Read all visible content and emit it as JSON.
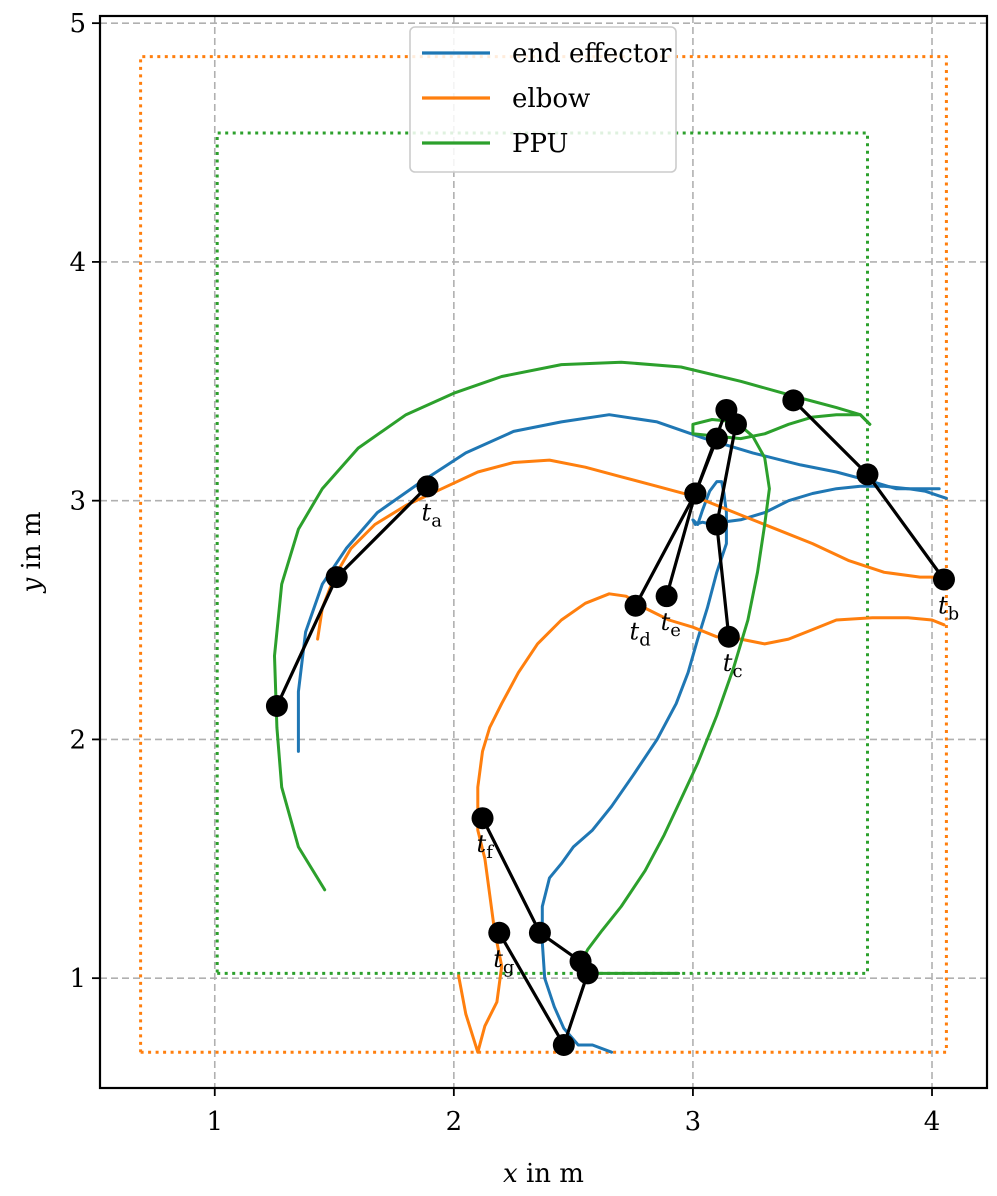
{
  "chart_data": {
    "type": "line",
    "xlabel": "x in m",
    "ylabel": "y in m",
    "xlim": [
      0.52,
      4.23
    ],
    "ylim": [
      0.54,
      5.03
    ],
    "xticks": [
      1,
      2,
      3,
      4
    ],
    "yticks": [
      1,
      2,
      3,
      4,
      5
    ],
    "grid": true,
    "legend_position": "top-center",
    "colors": {
      "end_effector": "#1f77b4",
      "elbow": "#ff7f0e",
      "ppu": "#2ca02c",
      "arm": "#000000"
    },
    "series": [
      {
        "name": "end effector",
        "color": "#1f77b4",
        "style": "solid",
        "x": [
          1.35,
          1.35,
          1.38,
          1.45,
          1.55,
          1.68,
          1.85,
          2.05,
          2.25,
          2.45,
          2.65,
          2.85,
          3.05,
          3.25,
          3.45,
          3.6,
          3.75,
          3.85,
          3.95,
          4.03
        ],
        "y": [
          1.95,
          2.2,
          2.45,
          2.65,
          2.8,
          2.95,
          3.07,
          3.2,
          3.29,
          3.33,
          3.36,
          3.33,
          3.26,
          3.2,
          3.15,
          3.12,
          3.08,
          3.05,
          3.05,
          3.05
        ]
      },
      {
        "name": "end effector",
        "color": "#1f77b4",
        "style": "solid",
        "x": [
          2.66,
          2.58,
          2.52,
          2.46,
          2.42,
          2.38,
          2.37,
          2.37,
          2.4,
          2.45,
          2.5,
          2.58,
          2.66,
          2.75,
          2.85,
          2.93,
          2.98,
          3.02,
          3.06,
          3.1,
          3.14,
          3.14,
          3.13,
          3.12,
          3.1,
          3.07,
          3.04,
          3.02,
          3.0,
          3.01,
          3.04,
          3.08,
          3.12,
          3.2,
          3.3,
          3.4,
          3.5,
          3.6,
          3.7,
          3.8,
          3.9,
          3.97,
          4.03,
          4.06
        ],
        "y": [
          0.69,
          0.72,
          0.72,
          0.79,
          0.88,
          1.0,
          1.15,
          1.3,
          1.42,
          1.48,
          1.55,
          1.62,
          1.72,
          1.85,
          2.0,
          2.15,
          2.28,
          2.42,
          2.55,
          2.7,
          2.82,
          2.95,
          3.03,
          3.08,
          3.08,
          3.04,
          2.96,
          2.9,
          2.92,
          2.9,
          2.91,
          2.9,
          2.91,
          2.92,
          2.95,
          3.0,
          3.03,
          3.05,
          3.06,
          3.06,
          3.05,
          3.04,
          3.02,
          3.01
        ]
      },
      {
        "name": "elbow",
        "color": "#ff7f0e",
        "style": "solid",
        "x": [
          1.43,
          1.45,
          1.5,
          1.57,
          1.67,
          1.8,
          1.95,
          2.1,
          2.25,
          2.4,
          2.55,
          2.7,
          2.85,
          3.0,
          3.1,
          3.2,
          3.35,
          3.5,
          3.65,
          3.8,
          3.95,
          4.05
        ],
        "y": [
          2.42,
          2.55,
          2.68,
          2.8,
          2.9,
          2.98,
          3.05,
          3.12,
          3.16,
          3.17,
          3.14,
          3.1,
          3.06,
          3.02,
          2.98,
          2.94,
          2.88,
          2.82,
          2.75,
          2.7,
          2.68,
          2.68
        ]
      },
      {
        "name": "elbow",
        "color": "#ff7f0e",
        "style": "solid",
        "x": [
          2.02,
          2.05,
          2.1,
          2.13,
          2.18,
          2.2,
          2.17,
          2.15,
          2.13,
          2.1,
          2.1,
          2.12,
          2.15,
          2.2,
          2.27,
          2.35,
          2.45,
          2.55,
          2.65,
          2.72,
          2.8,
          2.9,
          3.0,
          3.1,
          3.2,
          3.3,
          3.4,
          3.5,
          3.6,
          3.75,
          3.9,
          4.0,
          4.05
        ],
        "y": [
          1.01,
          0.85,
          0.69,
          0.8,
          0.9,
          1.05,
          1.2,
          1.35,
          1.5,
          1.62,
          1.8,
          1.95,
          2.05,
          2.15,
          2.28,
          2.4,
          2.5,
          2.57,
          2.61,
          2.6,
          2.55,
          2.5,
          2.47,
          2.43,
          2.42,
          2.4,
          2.42,
          2.46,
          2.5,
          2.51,
          2.51,
          2.5,
          2.48
        ]
      },
      {
        "name": "PPU",
        "color": "#2ca02c",
        "style": "solid",
        "x": [
          1.46,
          1.35,
          1.28,
          1.26,
          1.25,
          1.28,
          1.35,
          1.45,
          1.6,
          1.8,
          2.0,
          2.2,
          2.45,
          2.7,
          2.95,
          3.2,
          3.45,
          3.6,
          3.7,
          3.74
        ],
        "y": [
          1.37,
          1.55,
          1.8,
          2.05,
          2.35,
          2.65,
          2.88,
          3.05,
          3.22,
          3.36,
          3.45,
          3.52,
          3.57,
          3.58,
          3.56,
          3.5,
          3.43,
          3.39,
          3.36,
          3.32
        ]
      },
      {
        "name": "PPU",
        "color": "#2ca02c",
        "style": "solid",
        "x": [
          2.94,
          2.8,
          2.65,
          2.55,
          2.52,
          2.56,
          2.62,
          2.7,
          2.8,
          2.88,
          2.95,
          3.02,
          3.1,
          3.17,
          3.23,
          3.27,
          3.3,
          3.32,
          3.3,
          3.25,
          3.18,
          3.08,
          3.0,
          3.0,
          3.1,
          3.2,
          3.3,
          3.4,
          3.5,
          3.6,
          3.7,
          3.74
        ],
        "y": [
          1.02,
          1.02,
          1.02,
          1.02,
          1.04,
          1.12,
          1.2,
          1.3,
          1.45,
          1.6,
          1.75,
          1.9,
          2.1,
          2.3,
          2.5,
          2.7,
          2.9,
          3.05,
          3.18,
          3.27,
          3.33,
          3.34,
          3.32,
          3.28,
          3.27,
          3.26,
          3.28,
          3.32,
          3.35,
          3.36,
          3.36,
          3.32
        ]
      },
      {
        "name": "",
        "color": "#ff7f0e",
        "style": "dotted",
        "x": [
          0.69,
          4.06,
          4.06,
          0.69,
          0.69
        ],
        "y": [
          0.69,
          0.69,
          4.86,
          4.86,
          0.69
        ]
      },
      {
        "name": "",
        "color": "#2ca02c",
        "style": "dotted",
        "x": [
          1.01,
          3.73,
          3.73,
          1.01,
          1.01
        ],
        "y": [
          1.02,
          1.02,
          4.54,
          4.54,
          1.02
        ]
      }
    ],
    "arms": [
      {
        "label": "t",
        "subscript": "a",
        "points": [
          [
            1.26,
            2.14
          ],
          [
            1.51,
            2.68
          ],
          [
            1.89,
            3.06
          ]
        ],
        "label_at": [
          1.89,
          3.06
        ]
      },
      {
        "label": "t",
        "subscript": "b",
        "points": [
          [
            3.42,
            3.42
          ],
          [
            3.73,
            3.11
          ],
          [
            4.05,
            2.67
          ]
        ],
        "label_at": [
          4.05,
          2.67
        ]
      },
      {
        "label": "t",
        "subscript": "c",
        "points": [
          [
            3.18,
            3.32
          ],
          [
            3.1,
            2.9
          ],
          [
            3.15,
            2.43
          ]
        ],
        "label_at": [
          3.15,
          2.43
        ]
      },
      {
        "label": "t",
        "subscript": "d",
        "points": [
          [
            3.1,
            3.26
          ],
          [
            3.01,
            3.03
          ],
          [
            2.76,
            2.56
          ]
        ],
        "label_at": [
          2.76,
          2.56
        ]
      },
      {
        "label": "t",
        "subscript": "e",
        "points": [
          [
            3.14,
            3.38
          ],
          [
            3.01,
            3.03
          ],
          [
            2.89,
            2.6
          ]
        ],
        "label_at": [
          2.89,
          2.6
        ]
      },
      {
        "label": "t",
        "subscript": "f",
        "points": [
          [
            2.12,
            1.67
          ],
          [
            2.36,
            1.19
          ],
          [
            2.53,
            1.07
          ]
        ],
        "label_at": [
          2.12,
          1.67
        ]
      },
      {
        "label": "t",
        "subscript": "g",
        "points": [
          [
            2.56,
            1.02
          ],
          [
            2.46,
            0.72
          ],
          [
            2.19,
            1.19
          ]
        ],
        "label_at": [
          2.19,
          1.19
        ]
      }
    ],
    "legend": [
      {
        "label": "end effector",
        "color": "#1f77b4"
      },
      {
        "label": "elbow",
        "color": "#ff7f0e"
      },
      {
        "label": "PPU",
        "color": "#2ca02c"
      }
    ]
  }
}
